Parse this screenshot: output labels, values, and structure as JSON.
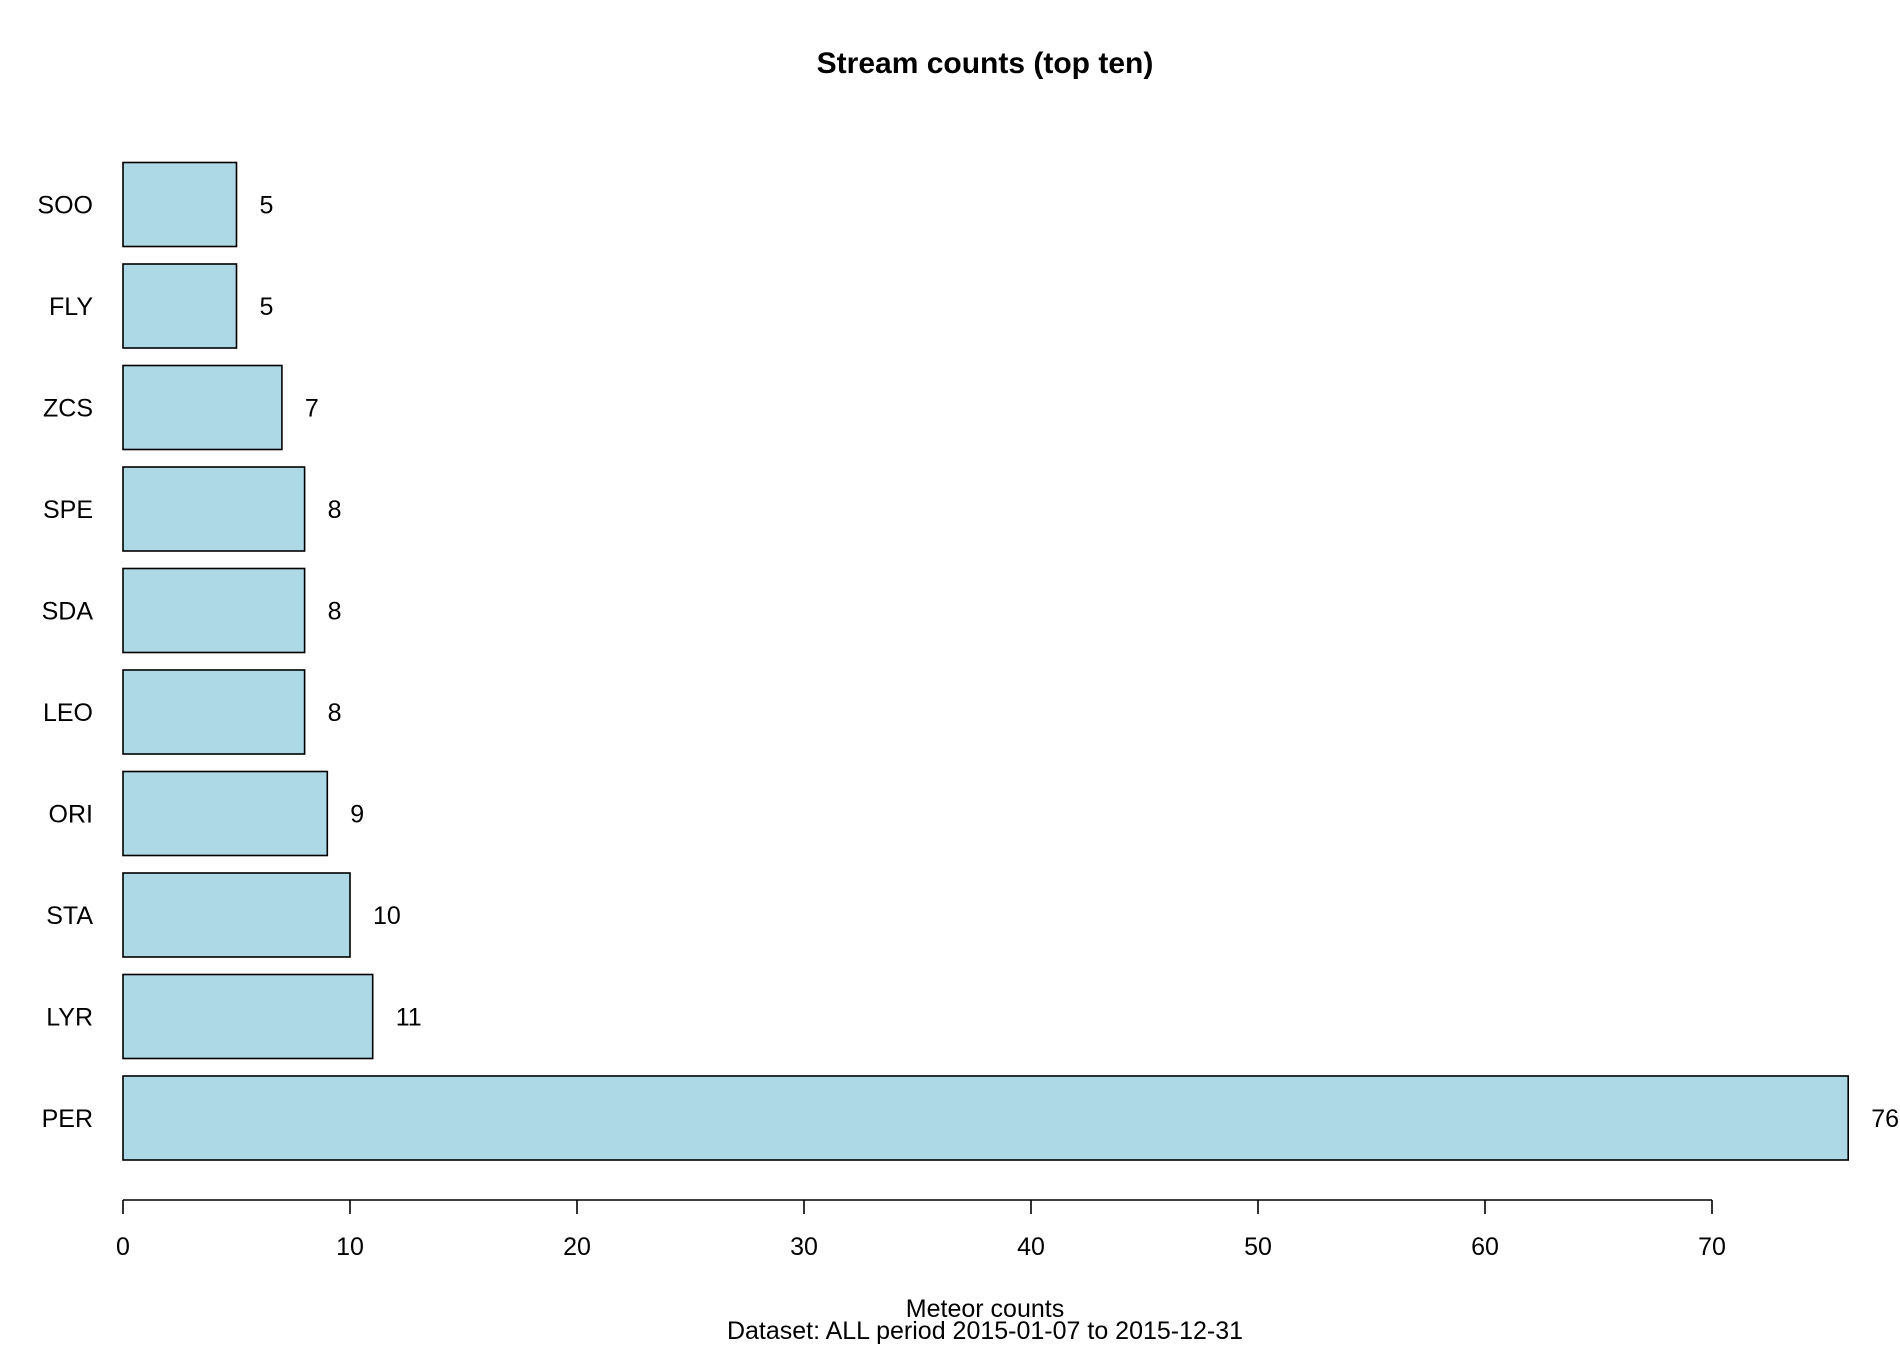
{
  "chart_data": {
    "type": "bar",
    "orientation": "horizontal",
    "title": "Stream counts (top ten)",
    "xlabel": "Meteor counts",
    "subtitle": "Dataset: ALL period 2015-01-07 to 2015-12-31",
    "ylabel": "",
    "categories": [
      "PER",
      "LYR",
      "STA",
      "ORI",
      "LEO",
      "SDA",
      "SPE",
      "ZCS",
      "FLY",
      "SOO"
    ],
    "values": [
      76,
      11,
      10,
      9,
      8,
      8,
      8,
      7,
      5,
      5
    ],
    "value_labels": [
      "76",
      "11",
      "10",
      "9",
      "8",
      "8",
      "8",
      "7",
      "5",
      "5"
    ],
    "xticks": [
      0,
      10,
      20,
      30,
      40,
      50,
      60,
      70
    ],
    "xtick_labels": [
      "0",
      "10",
      "20",
      "30",
      "40",
      "50",
      "60",
      "70"
    ],
    "xlim": [
      0,
      76
    ],
    "bar_color": "#add8e6",
    "grid": false,
    "legend": "none"
  }
}
